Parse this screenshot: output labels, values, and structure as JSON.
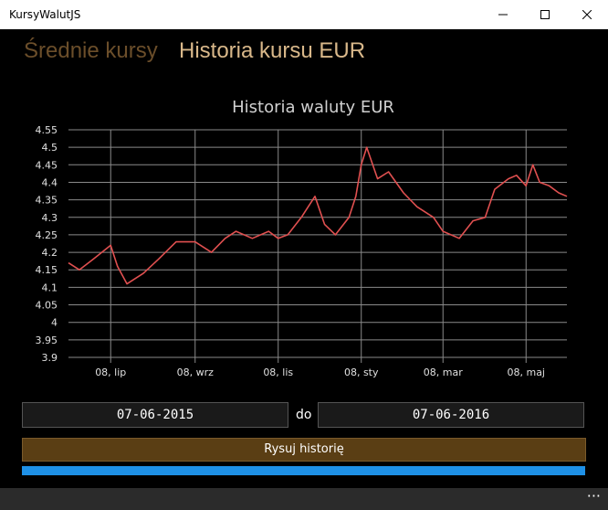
{
  "window": {
    "title": "KursyWalutJS"
  },
  "pivot": {
    "tabs": [
      "Średnie kursy",
      "Historia kursu EUR"
    ]
  },
  "chart_data": {
    "type": "line",
    "title": "Historia waluty EUR",
    "xlabel": "",
    "ylabel": "",
    "ylim": [
      3.9,
      4.55
    ],
    "grid": true,
    "x_ticks": [
      "08, lip",
      "08, wrz",
      "08, lis",
      "08, sty",
      "08, mar",
      "08, maj"
    ],
    "y_ticks": [
      "4.55",
      "4.5",
      "4.45",
      "4.4",
      "4.35",
      "4.3",
      "4.25",
      "4.2",
      "4.15",
      "4.1",
      "4.05",
      "4",
      "3.95",
      "3.9"
    ],
    "series": [
      {
        "color": "#e05050",
        "x": [
          "2015-06-07",
          "2015-06-15",
          "2015-06-25",
          "2015-07-08",
          "2015-07-13",
          "2015-07-20",
          "2015-08-01",
          "2015-08-12",
          "2015-08-25",
          "2015-09-08",
          "2015-09-20",
          "2015-09-30",
          "2015-10-08",
          "2015-10-20",
          "2015-11-01",
          "2015-11-08",
          "2015-11-15",
          "2015-11-25",
          "2015-12-05",
          "2015-12-12",
          "2015-12-20",
          "2015-12-30",
          "2016-01-04",
          "2016-01-08",
          "2016-01-12",
          "2016-01-20",
          "2016-01-28",
          "2016-02-08",
          "2016-02-18",
          "2016-03-01",
          "2016-03-08",
          "2016-03-20",
          "2016-03-30",
          "2016-04-08",
          "2016-04-15",
          "2016-04-25",
          "2016-05-01",
          "2016-05-08",
          "2016-05-13",
          "2016-05-18",
          "2016-05-25",
          "2016-06-01",
          "2016-06-07"
        ],
        "values": [
          4.17,
          4.15,
          4.18,
          4.22,
          4.16,
          4.11,
          4.14,
          4.18,
          4.23,
          4.23,
          4.2,
          4.24,
          4.26,
          4.24,
          4.26,
          4.24,
          4.25,
          4.3,
          4.36,
          4.28,
          4.25,
          4.3,
          4.36,
          4.45,
          4.5,
          4.41,
          4.43,
          4.37,
          4.33,
          4.3,
          4.26,
          4.24,
          4.29,
          4.3,
          4.38,
          4.41,
          4.42,
          4.39,
          4.45,
          4.4,
          4.39,
          4.37,
          4.36
        ]
      }
    ]
  },
  "date_range": {
    "from": "07-06-2015",
    "separator": "do",
    "to": "07-06-2016"
  },
  "draw_button": {
    "label": "Rysuj historię"
  },
  "progress": {
    "value": 1.0
  },
  "appbar": {
    "more_label": "···"
  }
}
